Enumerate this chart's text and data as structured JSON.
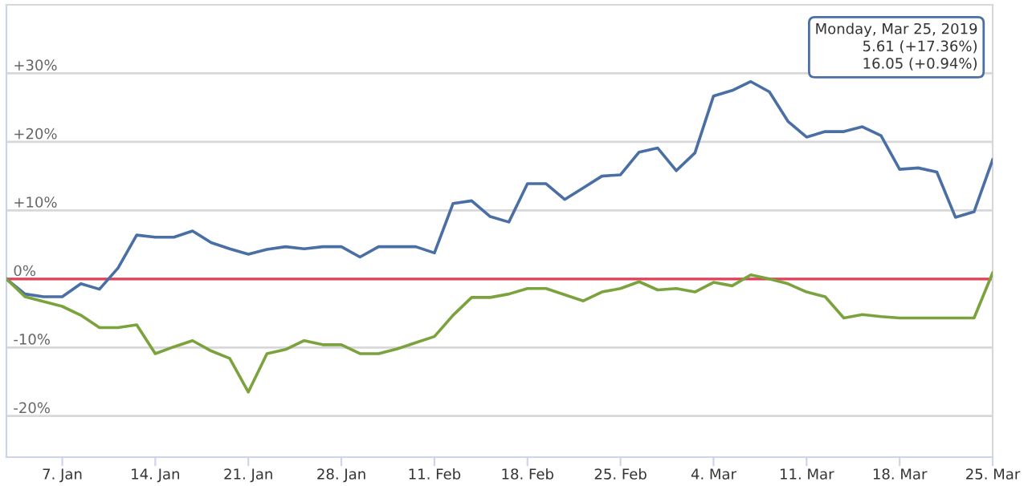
{
  "chart_data": {
    "type": "line",
    "categories": [
      null,
      null,
      null,
      "7. Jan",
      null,
      null,
      null,
      null,
      "14. Jan",
      null,
      null,
      null,
      null,
      "21. Jan",
      null,
      null,
      null,
      null,
      "28. Jan",
      null,
      null,
      null,
      null,
      "11. Feb",
      null,
      null,
      null,
      null,
      "18. Feb",
      null,
      null,
      null,
      null,
      "25. Feb",
      null,
      null,
      null,
      null,
      "4. Mar",
      null,
      null,
      null,
      null,
      "11. Mar",
      null,
      null,
      null,
      null,
      "18. Mar",
      null,
      null,
      null,
      null,
      "25. Mar"
    ],
    "series": [
      {
        "color": "#4a6fa5",
        "values": [
          0,
          -2.2,
          -2.6,
          -2.6,
          -0.7,
          -1.5,
          1.6,
          6.4,
          6.1,
          6.1,
          7.0,
          5.3,
          4.4,
          3.6,
          4.3,
          4.7,
          4.4,
          4.7,
          4.7,
          3.2,
          4.7,
          4.7,
          4.7,
          3.8,
          11.0,
          11.4,
          9.1,
          8.3,
          13.9,
          13.9,
          11.6,
          13.3,
          15.0,
          15.2,
          18.5,
          19.1,
          15.8,
          18.4,
          26.7,
          27.5,
          28.8,
          27.3,
          23.0,
          20.7,
          21.5,
          21.5,
          22.2,
          20.9,
          16.0,
          16.2,
          15.6,
          9.0,
          9.8,
          17.4
        ]
      },
      {
        "color": "#7ba33d",
        "values": [
          0,
          -2.6,
          -3.3,
          -4.0,
          -5.3,
          -7.1,
          -7.1,
          -6.7,
          -10.9,
          -9.9,
          -9.0,
          -10.5,
          -11.6,
          -16.5,
          -10.9,
          -10.3,
          -9.0,
          -9.6,
          -9.6,
          -10.9,
          -10.9,
          -10.2,
          -9.3,
          -8.4,
          -5.3,
          -2.7,
          -2.7,
          -2.2,
          -1.4,
          -1.4,
          -2.3,
          -3.2,
          -1.9,
          -1.4,
          -0.4,
          -1.6,
          -1.4,
          -1.9,
          -0.5,
          -1.0,
          0.6,
          0,
          -0.7,
          -1.9,
          -2.6,
          -5.7,
          -5.2,
          -5.5,
          -5.7,
          -5.7,
          -5.7,
          -5.7,
          -5.7,
          0.9
        ]
      }
    ],
    "ylim": [
      -26,
      40
    ],
    "yticks": [
      {
        "value": 30,
        "label": "+30%"
      },
      {
        "value": 20,
        "label": "+20%"
      },
      {
        "value": 10,
        "label": "+10%"
      },
      {
        "value": 0,
        "label": "0%"
      },
      {
        "value": -10,
        "label": "-10%"
      },
      {
        "value": -20,
        "label": "-20%"
      }
    ],
    "grid": "y",
    "ref_lines": [
      {
        "axis": "y",
        "value": 0,
        "color": "#e0405a"
      }
    ],
    "annotations": [
      "Monday, Mar 25, 2019",
      "5.61 (+17.36%)",
      "16.05 (+0.94%)"
    ]
  }
}
